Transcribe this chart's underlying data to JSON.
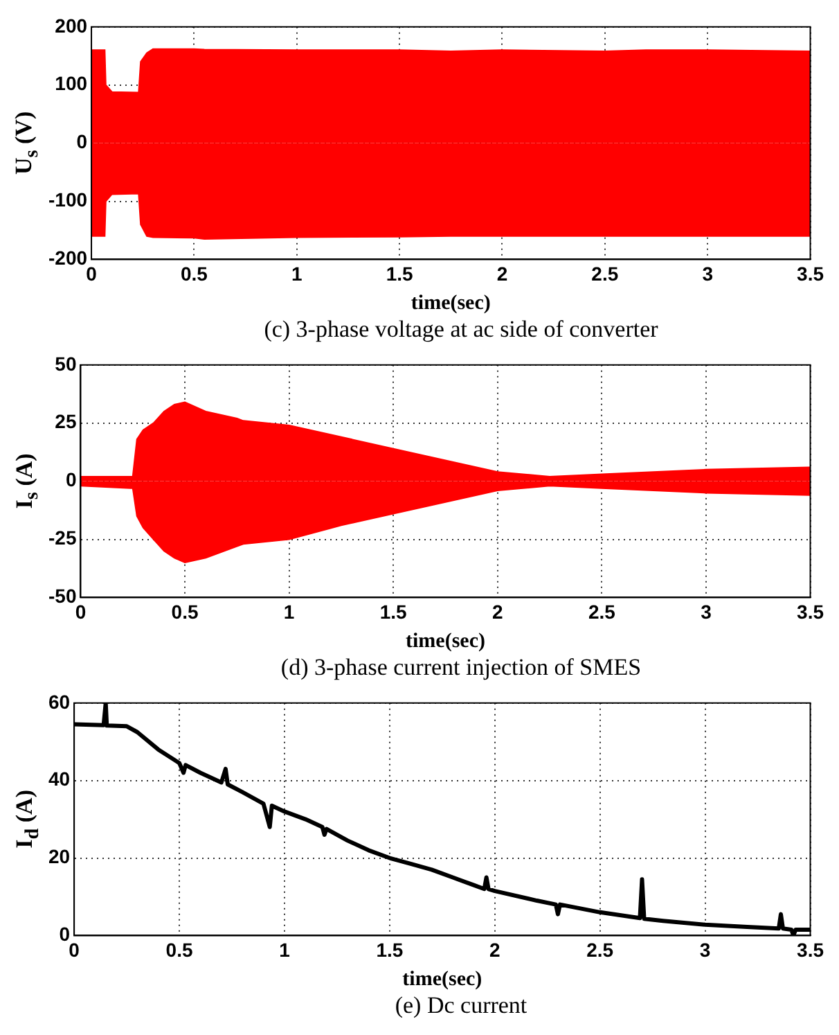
{
  "chart_data": [
    {
      "type": "line",
      "xlabel": "time(sec)",
      "ylabel": "U$_{s}$ (V)",
      "annotations": [
        "(c) 3-phase voltage at ac side of converter"
      ],
      "xlim": [
        0,
        3.5
      ],
      "xticks": [
        0,
        0.5,
        1,
        1.5,
        2,
        2.5,
        3,
        3.5
      ],
      "ylim": [
        -200,
        200
      ],
      "yticks": [
        -200,
        -100,
        0,
        100,
        200
      ],
      "grid": true,
      "marker": "none",
      "series": [
        {
          "type": "area",
          "color": "#ff0000",
          "x": [
            0,
            0.065,
            0.07,
            0.1,
            0.23,
            0.24,
            0.27,
            0.3,
            0.5,
            0.55,
            1,
            1.5,
            1.75,
            2,
            2.5,
            2.7,
            3,
            3.5
          ],
          "values": [
            160,
            160,
            100,
            88,
            87,
            140,
            155,
            162,
            162,
            161,
            160,
            160,
            158,
            160,
            158,
            160,
            160,
            158
          ]
        },
        {
          "type": "area",
          "color": "#ff0000",
          "x": [
            0,
            0.065,
            0.07,
            0.1,
            0.23,
            0.24,
            0.27,
            0.3,
            0.5,
            0.55,
            1,
            1.5,
            1.75,
            2,
            2.5,
            2.7,
            3,
            3.5
          ],
          "values": [
            -160,
            -160,
            -100,
            -88,
            -87,
            -140,
            -160,
            -162,
            -163,
            -165,
            -162,
            -161,
            -160,
            -160,
            -160,
            -160,
            -160,
            -160
          ]
        }
      ]
    },
    {
      "type": "line",
      "xlabel": "time(sec)",
      "ylabel": "I$_{s}$ (A)",
      "annotations": [
        "(d) 3-phase current injection of SMES"
      ],
      "xlim": [
        0,
        3.5
      ],
      "xticks": [
        0,
        0.5,
        1,
        1.5,
        2,
        2.5,
        3,
        3.5
      ],
      "ylim": [
        -50,
        50
      ],
      "yticks": [
        -50,
        -25,
        0,
        25,
        50
      ],
      "grid": true,
      "marker": "none",
      "series": [
        {
          "type": "area",
          "color": "#ff0000",
          "x": [
            0,
            0.24,
            0.25,
            0.27,
            0.3,
            0.35,
            0.4,
            0.45,
            0.5,
            0.6,
            0.75,
            0.78,
            1,
            1.25,
            1.5,
            1.75,
            2,
            2.25,
            2.5,
            3,
            3.5
          ],
          "values": [
            2,
            2,
            2,
            18,
            22,
            25,
            30,
            33,
            34,
            30,
            27,
            26,
            24,
            19,
            14,
            9,
            4,
            2,
            3,
            5,
            6
          ]
        },
        {
          "type": "area",
          "color": "#ff0000",
          "x": [
            0,
            0.24,
            0.25,
            0.27,
            0.3,
            0.35,
            0.4,
            0.45,
            0.5,
            0.6,
            0.75,
            0.78,
            1,
            1.25,
            1.5,
            1.75,
            2,
            2.25,
            2.5,
            3,
            3.5
          ],
          "values": [
            -2,
            -3,
            -3,
            -15,
            -20,
            -25,
            -30,
            -33,
            -35,
            -33,
            -28,
            -27,
            -25,
            -19,
            -14,
            -9,
            -4,
            -2,
            -3,
            -5,
            -6
          ]
        }
      ]
    },
    {
      "type": "line",
      "xlabel": "time(sec)",
      "ylabel": "I$_{d}$ (A)",
      "annotations": [
        "(e) Dc current"
      ],
      "xlim": [
        0,
        3.5
      ],
      "xticks": [
        0,
        0.5,
        1,
        1.5,
        2,
        2.5,
        3,
        3.5
      ],
      "ylim": [
        0,
        60
      ],
      "yticks": [
        0,
        20,
        40,
        60
      ],
      "grid": true,
      "marker": "none",
      "line_style": "solid",
      "series": [
        {
          "type": "line",
          "color": "#000000",
          "x": [
            0,
            0.14,
            0.15,
            0.155,
            0.25,
            0.3,
            0.4,
            0.5,
            0.52,
            0.53,
            0.6,
            0.7,
            0.72,
            0.73,
            0.8,
            0.9,
            0.93,
            0.94,
            1,
            1.1,
            1.18,
            1.19,
            1.2,
            1.3,
            1.4,
            1.5,
            1.6,
            1.7,
            1.8,
            1.9,
            1.95,
            1.96,
            1.97,
            2,
            2.2,
            2.29,
            2.3,
            2.31,
            2.5,
            2.69,
            2.7,
            2.71,
            2.8,
            3,
            3.2,
            3.35,
            3.36,
            3.37,
            3.41,
            3.42,
            3.43,
            3.5
          ],
          "values": [
            54.5,
            54.3,
            60,
            54.2,
            54,
            52.5,
            48,
            44.5,
            42,
            44,
            42,
            39.5,
            43,
            39,
            37,
            34,
            28,
            33.5,
            32,
            30,
            28,
            26,
            27.5,
            24.5,
            22,
            20,
            18.5,
            17,
            15,
            13,
            12,
            15,
            12,
            11.5,
            9,
            8,
            5.5,
            8,
            6,
            4.5,
            14.5,
            4.3,
            3.8,
            2.8,
            2.2,
            1.8,
            5.5,
            1.8,
            1.5,
            0,
            1.5,
            1.5
          ]
        }
      ]
    }
  ]
}
